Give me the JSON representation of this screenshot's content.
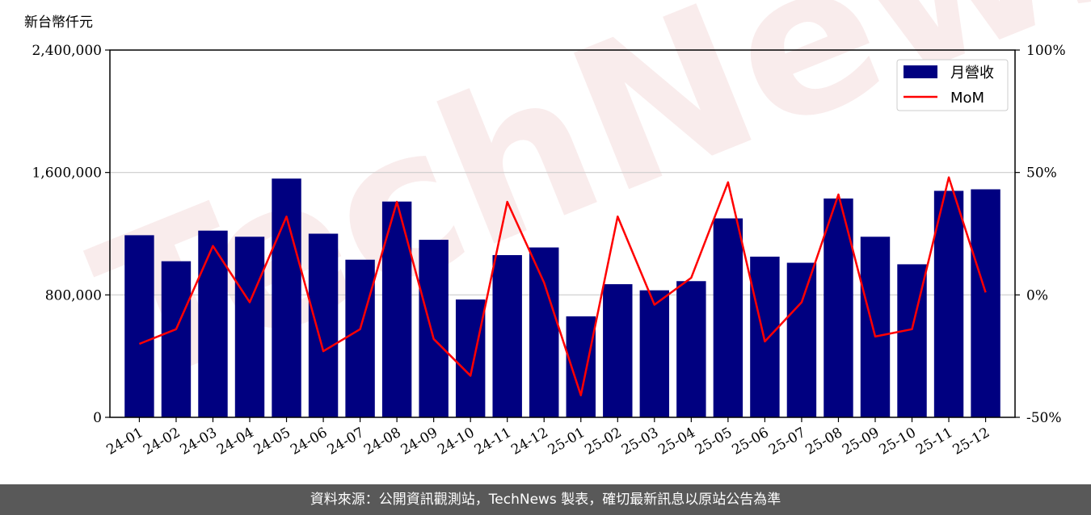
{
  "chart_data": {
    "type": "bar",
    "unit_label": "新台幣仟元",
    "categories": [
      "24-01",
      "24-02",
      "24-03",
      "24-04",
      "24-05",
      "24-06",
      "24-07",
      "24-08",
      "24-09",
      "24-10",
      "24-11",
      "24-12",
      "25-01",
      "25-02",
      "25-03",
      "25-04",
      "25-05",
      "25-06",
      "25-07",
      "25-08",
      "25-09",
      "25-10",
      "25-11",
      "25-12"
    ],
    "series": [
      {
        "name": "月營收",
        "axis": "left",
        "kind": "bar",
        "color": "#000080",
        "values": [
          1190000,
          1020000,
          1220000,
          1180000,
          1560000,
          1200000,
          1030000,
          1410000,
          1160000,
          770000,
          1060000,
          1110000,
          660000,
          870000,
          830000,
          890000,
          1300000,
          1050000,
          1010000,
          1430000,
          1180000,
          1000000,
          1480000,
          1490000
        ]
      },
      {
        "name": "MoM",
        "axis": "right",
        "kind": "line",
        "color": "#ff0000",
        "values": [
          -20,
          -14,
          20,
          -3,
          32,
          -23,
          -14,
          38,
          -18,
          -33,
          38,
          5,
          -41,
          32,
          -4,
          7,
          46,
          -19,
          -3,
          41,
          -17,
          -14,
          48,
          1
        ]
      }
    ],
    "y_left": {
      "ylim": [
        0,
        2400000
      ],
      "ticks": [
        "0",
        "800,000",
        "1,600,000",
        "2,400,000"
      ]
    },
    "y_right": {
      "ylim": [
        -50,
        100
      ],
      "ticks": [
        "-50%",
        "0%",
        "50%",
        "100%"
      ]
    },
    "grid": "horizontal",
    "legend": "top-right"
  },
  "watermark": "TechNews",
  "footer": {
    "source": "資料來源：公開資訊觀測站，TechNews 製表，確切最新訊息以原站公告為準"
  }
}
